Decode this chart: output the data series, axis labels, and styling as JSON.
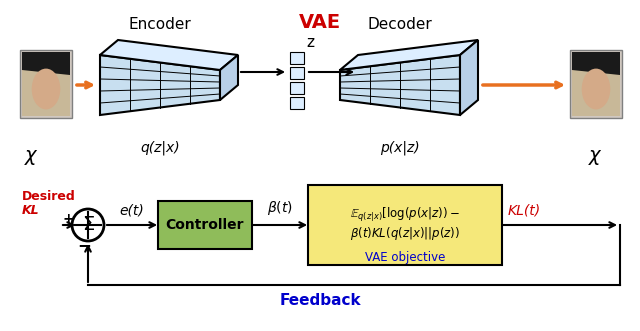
{
  "title": "",
  "bg_color": "#ffffff",
  "encoder_label": "Encoder",
  "decoder_label": "Decoder",
  "vae_label": "VAE",
  "z_label": "z",
  "q_label": "q(z|x)",
  "p_label": "p(x|z)",
  "x_left_label": "$\\chi$",
  "x_right_label": "$\\chi$",
  "desired_kl_label": "Desired\nKL",
  "error_label": "e(t)",
  "beta_label": "\\beta(t)",
  "controller_label": "Controller",
  "kl_out_label": "KL(t)",
  "feedback_label": "Feedback",
  "vae_obj_label": "VAE objective",
  "vae_obj_math": "$\\mathbb{E}_{q(z|x)}[\\log(p(x|z)) -$\n$\\beta(t)KL(q(z|x)||p(z))$",
  "plus_label": "+",
  "minus_label": "−",
  "grid_color": "#a8c8e8",
  "panel_color": "#c8dff0",
  "panel_edge": "#000000",
  "controller_color": "#8fbc5a",
  "controller_edge": "#000000",
  "vae_box_color": "#f5e87a",
  "vae_box_edge": "#000000",
  "arrow_color": "#e87020",
  "flow_arrow_color": "#000000",
  "vae_title_color": "#cc0000",
  "desired_kl_color": "#cc0000",
  "kl_out_color": "#cc0000",
  "feedback_color": "#0000cc",
  "vae_obj_sub_color": "#0000cc"
}
